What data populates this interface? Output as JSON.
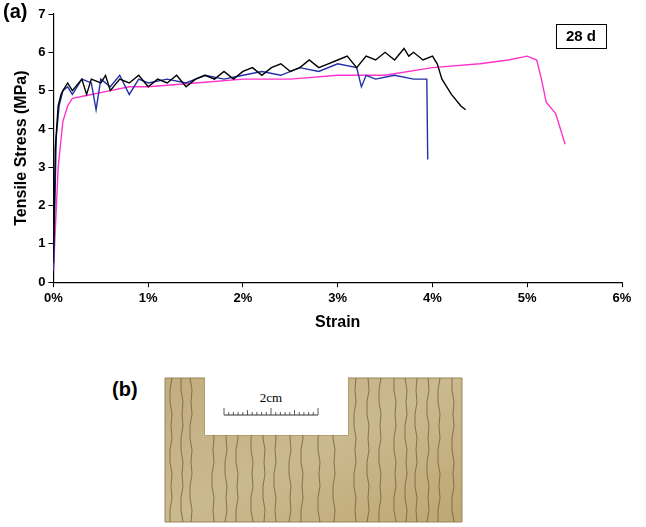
{
  "chart_data": {
    "type": "line",
    "panel_label": "(a)",
    "annotations": [
      "28 d"
    ],
    "x_label": "Strain",
    "y_label": "Tensile Stress (MPa)",
    "xlim": [
      0,
      6
    ],
    "xticks": [
      {
        "value": 0,
        "label": "0%"
      },
      {
        "value": 1,
        "label": "1%"
      },
      {
        "value": 2,
        "label": "2%"
      },
      {
        "value": 3,
        "label": "3%"
      },
      {
        "value": 4,
        "label": "4%"
      },
      {
        "value": 5,
        "label": "5%"
      },
      {
        "value": 6,
        "label": "6%"
      }
    ],
    "ylim": [
      0,
      7
    ],
    "yticks": [
      0,
      1,
      2,
      3,
      4,
      5,
      6,
      7
    ],
    "grid": false,
    "series": [
      {
        "color": "#000000",
        "x": [
          0,
          0.02,
          0.05,
          0.08,
          0.1,
          0.15,
          0.2,
          0.3,
          0.35,
          0.4,
          0.5,
          0.55,
          0.6,
          0.7,
          0.8,
          0.9,
          1.0,
          1.1,
          1.2,
          1.3,
          1.4,
          1.5,
          1.6,
          1.7,
          1.8,
          1.9,
          2.0,
          2.1,
          2.2,
          2.3,
          2.4,
          2.5,
          2.6,
          2.7,
          2.8,
          2.9,
          3.0,
          3.1,
          3.2,
          3.3,
          3.4,
          3.5,
          3.6,
          3.7,
          3.75,
          3.8,
          3.9,
          4.0,
          4.05,
          4.1,
          4.2,
          4.3,
          4.35
        ],
        "values": [
          0.5,
          3.5,
          4.6,
          4.9,
          5.0,
          5.2,
          5.0,
          5.3,
          4.9,
          5.3,
          5.2,
          5.4,
          5.0,
          5.3,
          5.2,
          5.4,
          5.1,
          5.3,
          5.2,
          5.4,
          5.1,
          5.3,
          5.4,
          5.3,
          5.5,
          5.3,
          5.5,
          5.6,
          5.4,
          5.6,
          5.7,
          5.5,
          5.6,
          5.8,
          5.6,
          5.7,
          5.8,
          5.9,
          5.6,
          5.9,
          5.8,
          6.0,
          5.8,
          6.1,
          5.9,
          6.0,
          5.8,
          5.9,
          5.7,
          5.3,
          4.9,
          4.6,
          4.5
        ]
      },
      {
        "color": "#2230a8",
        "x": [
          0,
          0.03,
          0.06,
          0.1,
          0.15,
          0.2,
          0.3,
          0.4,
          0.45,
          0.5,
          0.6,
          0.7,
          0.8,
          0.9,
          1.0,
          1.2,
          1.4,
          1.6,
          1.8,
          2.0,
          2.2,
          2.4,
          2.6,
          2.8,
          3.0,
          3.2,
          3.25,
          3.3,
          3.4,
          3.6,
          3.8,
          3.94,
          3.95
        ],
        "values": [
          0.3,
          3.8,
          4.6,
          5.0,
          5.1,
          4.9,
          5.3,
          5.2,
          4.5,
          5.3,
          5.1,
          5.4,
          4.9,
          5.3,
          5.2,
          5.3,
          5.2,
          5.4,
          5.3,
          5.4,
          5.5,
          5.4,
          5.6,
          5.5,
          5.7,
          5.6,
          5.1,
          5.4,
          5.3,
          5.4,
          5.3,
          5.3,
          3.2
        ]
      },
      {
        "color": "#ff33cc",
        "x": [
          0,
          0.05,
          0.1,
          0.15,
          0.2,
          0.4,
          0.6,
          0.8,
          1.0,
          1.5,
          2.0,
          2.5,
          3.0,
          3.5,
          4.0,
          4.5,
          4.8,
          5.0,
          5.1,
          5.15,
          5.2,
          5.3,
          5.4
        ],
        "values": [
          0.3,
          3.0,
          4.2,
          4.6,
          4.8,
          4.9,
          5.0,
          5.1,
          5.1,
          5.2,
          5.3,
          5.3,
          5.4,
          5.4,
          5.6,
          5.7,
          5.8,
          5.9,
          5.8,
          5.3,
          4.7,
          4.4,
          3.6
        ]
      }
    ]
  },
  "photo": {
    "label": "(b)",
    "scale_bar": "2cm"
  }
}
